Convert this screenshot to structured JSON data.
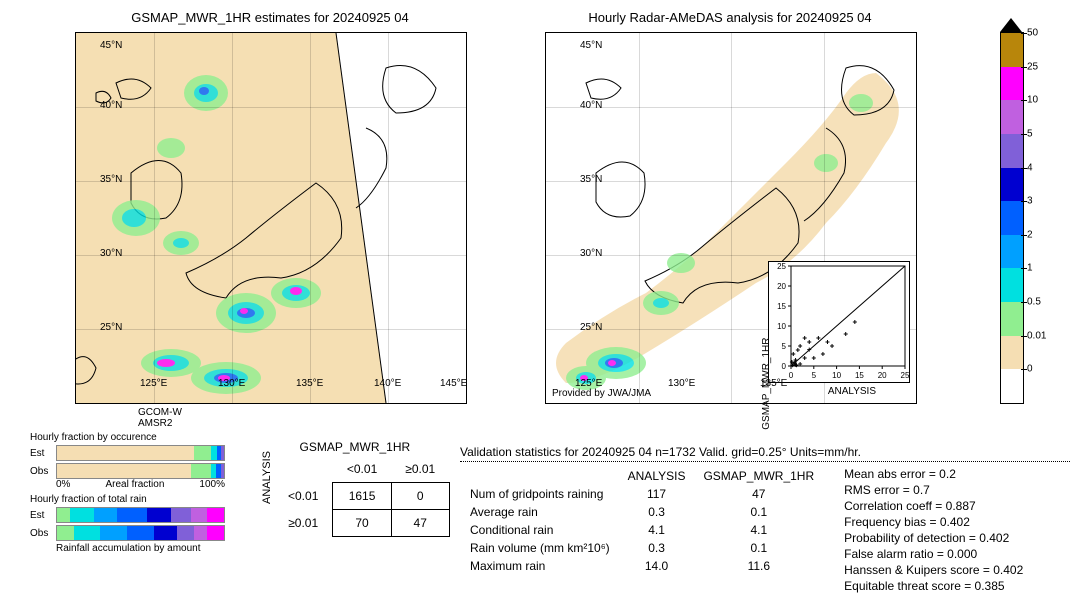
{
  "titles": {
    "left": "GSMAP_MWR_1HR estimates for 20240925 04",
    "right": "Hourly Radar-AMeDAS analysis for 20240925 04"
  },
  "map_left_caption1": "GCOM-W",
  "map_left_caption2": "AMSR2",
  "colorbar": {
    "ticks": [
      "50",
      "25",
      "10",
      "5",
      "4",
      "3",
      "2",
      "1",
      "0.5",
      "0.01",
      "0"
    ],
    "colors": [
      "#b8860b",
      "#ff00ff",
      "#c060e0",
      "#8060d8",
      "#0000d0",
      "#0060ff",
      "#00a0ff",
      "#00e0e0",
      "#90ee90",
      "#f5deb3",
      "#ffffff"
    ]
  },
  "lon_ticks_left": [
    "125°E",
    "130°E",
    "135°E",
    "140°E",
    "145°E"
  ],
  "lon_ticks_right": [
    "125°E",
    "130°E",
    "135°E"
  ],
  "lat_ticks": [
    "25°N",
    "30°N",
    "35°N",
    "40°N",
    "45°N"
  ],
  "scatter": {
    "xlabel": "ANALYSIS",
    "ylabel": "GSMAP_MWR_1HR",
    "xlim": [
      0,
      25
    ],
    "ylim": [
      0,
      25
    ],
    "ticks": [
      0,
      5,
      10,
      15,
      20,
      25
    ],
    "points": [
      [
        0.3,
        0.2
      ],
      [
        1,
        1.5
      ],
      [
        2,
        0.5
      ],
      [
        3,
        2
      ],
      [
        1.5,
        4
      ],
      [
        0.5,
        3
      ],
      [
        5,
        2
      ],
      [
        4,
        6
      ],
      [
        7,
        3
      ],
      [
        9,
        5
      ],
      [
        6,
        7
      ],
      [
        12,
        8
      ],
      [
        14,
        11
      ],
      [
        4,
        4.1
      ],
      [
        2,
        5
      ],
      [
        8,
        6
      ],
      [
        3,
        7
      ],
      [
        1,
        0.3
      ],
      [
        0.2,
        1
      ],
      [
        0.8,
        0.8
      ],
      [
        1.2,
        0.2
      ]
    ]
  },
  "hourly_frac": {
    "title1": "Hourly fraction by occurence",
    "bars_occ": {
      "Est": [
        {
          "w": 82,
          "c": "#f5deb3"
        },
        {
          "w": 10,
          "c": "#90ee90"
        },
        {
          "w": 4,
          "c": "#00e0e0"
        },
        {
          "w": 2,
          "c": "#0060ff"
        },
        {
          "w": 2,
          "c": "#8060d8"
        }
      ],
      "Obs": [
        {
          "w": 80,
          "c": "#f5deb3"
        },
        {
          "w": 12,
          "c": "#90ee90"
        },
        {
          "w": 3,
          "c": "#00e0e0"
        },
        {
          "w": 3,
          "c": "#0060ff"
        },
        {
          "w": 2,
          "c": "#8060d8"
        }
      ]
    },
    "axis1_left": "0%",
    "axis1_right": "100%",
    "axis1_label": "Areal fraction",
    "title2": "Hourly fraction of total rain",
    "bars_rain": {
      "Est": [
        {
          "w": 8,
          "c": "#90ee90"
        },
        {
          "w": 14,
          "c": "#00e0e0"
        },
        {
          "w": 14,
          "c": "#00a0ff"
        },
        {
          "w": 18,
          "c": "#0060ff"
        },
        {
          "w": 14,
          "c": "#0000d0"
        },
        {
          "w": 12,
          "c": "#8060d8"
        },
        {
          "w": 10,
          "c": "#c060e0"
        },
        {
          "w": 10,
          "c": "#ff00ff"
        }
      ],
      "Obs": [
        {
          "w": 10,
          "c": "#90ee90"
        },
        {
          "w": 16,
          "c": "#00e0e0"
        },
        {
          "w": 16,
          "c": "#00a0ff"
        },
        {
          "w": 16,
          "c": "#0060ff"
        },
        {
          "w": 14,
          "c": "#0000d0"
        },
        {
          "w": 10,
          "c": "#8060d8"
        },
        {
          "w": 8,
          "c": "#c060e0"
        },
        {
          "w": 10,
          "c": "#ff00ff"
        }
      ]
    },
    "caption2": "Rainfall accumulation by amount",
    "est": "Est",
    "obs": "Obs"
  },
  "contingency": {
    "col_header": "GSMAP_MWR_1HR",
    "row_header": "ANALYSIS",
    "col1": "<0.01",
    "col2": "≥0.01",
    "r1c1": "1615",
    "r1c2": "0",
    "r2c1": "70",
    "r2c2": "47",
    "row1": "<0.01",
    "row2": "≥0.01"
  },
  "validation": {
    "title": "Validation statistics for 20240925 04  n=1732 Valid. grid=0.25°  Units=mm/hr.",
    "hdr_blank": "",
    "hdr_a": "ANALYSIS",
    "hdr_g": "GSMAP_MWR_1HR",
    "rows": [
      {
        "label": "Num of gridpoints raining",
        "a": "117",
        "g": "47"
      },
      {
        "label": "Average rain",
        "a": "0.3",
        "g": "0.1"
      },
      {
        "label": "Conditional rain",
        "a": "4.1",
        "g": "4.1"
      },
      {
        "label": "Rain volume (mm km²10⁶)",
        "a": "0.3",
        "g": "0.1"
      },
      {
        "label": "Maximum rain",
        "a": "14.0",
        "g": "11.6"
      }
    ]
  },
  "metrics": [
    "Mean abs error =    0.2",
    "RMS error =    0.7",
    "Correlation coeff =  0.887",
    "Frequency bias =  0.402",
    "Probability of detection =  0.402",
    "False alarm ratio =  0.000",
    "Hanssen & Kuipers score =  0.402",
    "Equitable threat score =  0.385"
  ],
  "provided": "Provided by JWA/JMA"
}
